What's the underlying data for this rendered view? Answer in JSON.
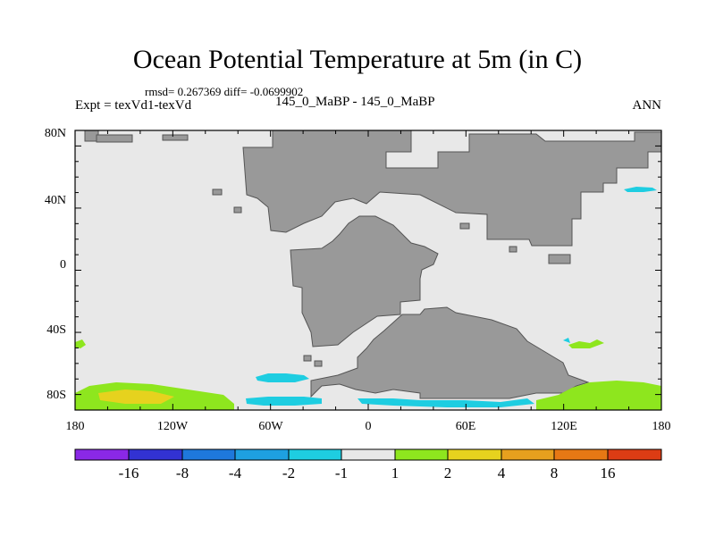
{
  "title": "Ocean Potential Temperature at 5m (in C)",
  "stats": "rmsd= 0.267369 diff= -0.0699902",
  "expt": "Expt = texVd1-texVd",
  "case": "145_0_MaBP - 145_0_MaBP",
  "season": "ANN",
  "map": {
    "ocean_color": "#e8e8e8",
    "land_color": "#999999",
    "lon_ticks": [
      "180",
      "120W",
      "60W",
      "0",
      "60E",
      "120E",
      "180"
    ],
    "lat_ticks": [
      "80N",
      "40N",
      "0",
      "40S",
      "80S"
    ]
  },
  "colorbar": {
    "colors": [
      "#8a28e6",
      "#3232d2",
      "#1e78dc",
      "#1ea0e1",
      "#1ecde1",
      "#e8e8e8",
      "#8ee61e",
      "#e6d21e",
      "#e6a01e",
      "#e67814",
      "#dc3c14"
    ],
    "labels": [
      "-16",
      "-8",
      "-4",
      "-2",
      "-1",
      "1",
      "2",
      "4",
      "8",
      "16"
    ]
  }
}
